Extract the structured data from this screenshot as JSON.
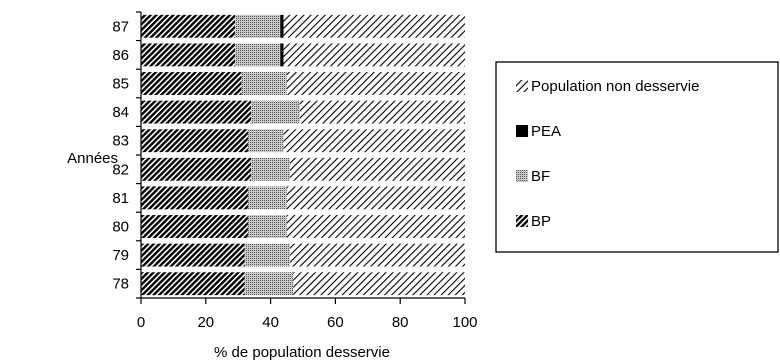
{
  "chart_data": {
    "type": "bar",
    "orientation": "horizontal",
    "stacked": true,
    "ylabel": "Années",
    "xlabel": "% de population desservie",
    "categories": [
      "78",
      "79",
      "80",
      "81",
      "82",
      "83",
      "84",
      "85",
      "86",
      "87"
    ],
    "series": [
      {
        "name": "BP",
        "pattern": "diagonal-hatch-dense",
        "color": "#000000",
        "values": [
          32,
          32,
          33,
          33,
          34,
          33,
          34,
          31,
          29,
          29
        ]
      },
      {
        "name": "BF",
        "pattern": "stipple",
        "color": "#808080",
        "values": [
          15,
          14,
          12,
          12,
          12,
          11,
          15,
          14,
          14,
          14
        ]
      },
      {
        "name": "PEA",
        "pattern": "solid",
        "color": "#000000",
        "values": [
          0,
          0,
          0,
          0,
          0,
          0,
          0,
          0,
          1,
          1
        ]
      },
      {
        "name": "Population non desservie",
        "pattern": "diagonal-hatch-light",
        "color": "#000000",
        "values": [
          53,
          54,
          55,
          55,
          54,
          56,
          51,
          55,
          56,
          56
        ]
      }
    ],
    "xlim": [
      0,
      100
    ],
    "xticks": [
      0,
      20,
      40,
      60,
      80,
      100
    ],
    "grid": false,
    "legend_position": "right",
    "legend_order": [
      "Population non desservie",
      "PEA",
      "BF",
      "BP"
    ]
  }
}
